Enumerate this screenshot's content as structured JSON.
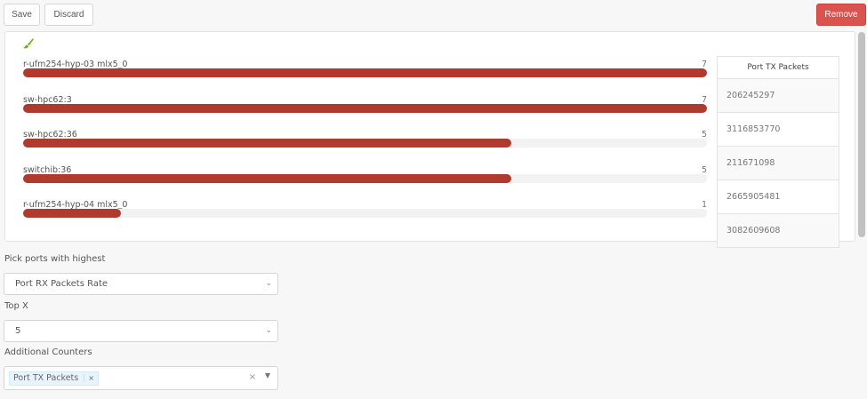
{
  "toolbar": {
    "save": "Save",
    "discard": "Discard",
    "remove": "Remove"
  },
  "colors": {
    "bar": "#b03a2e",
    "brush_icon": "#6bb51a",
    "remove": "#d9534f"
  },
  "chart_data": {
    "type": "bar",
    "orientation": "horizontal",
    "max": 7,
    "categories": [
      "r-ufm254-hyp-03 mlx5_0",
      "sw-hpc62:3",
      "sw-hpc62:36",
      "switchib:36",
      "r-ufm254-hyp-04 mlx5_0"
    ],
    "values": [
      7,
      7,
      5,
      5,
      1
    ]
  },
  "table": {
    "header": "Port TX Packets",
    "values": [
      "206245297",
      "3116853770",
      "211671098",
      "2665905481",
      "3082609608"
    ]
  },
  "form": {
    "pick_label": "Pick ports with highest",
    "pick_value": "Port RX Packets Rate",
    "topx_label": "Top X",
    "topx_value": "5",
    "counters_label": "Additional Counters",
    "counters_tags": [
      "Port TX Packets"
    ],
    "tag_remove": "×",
    "clear": "×"
  }
}
